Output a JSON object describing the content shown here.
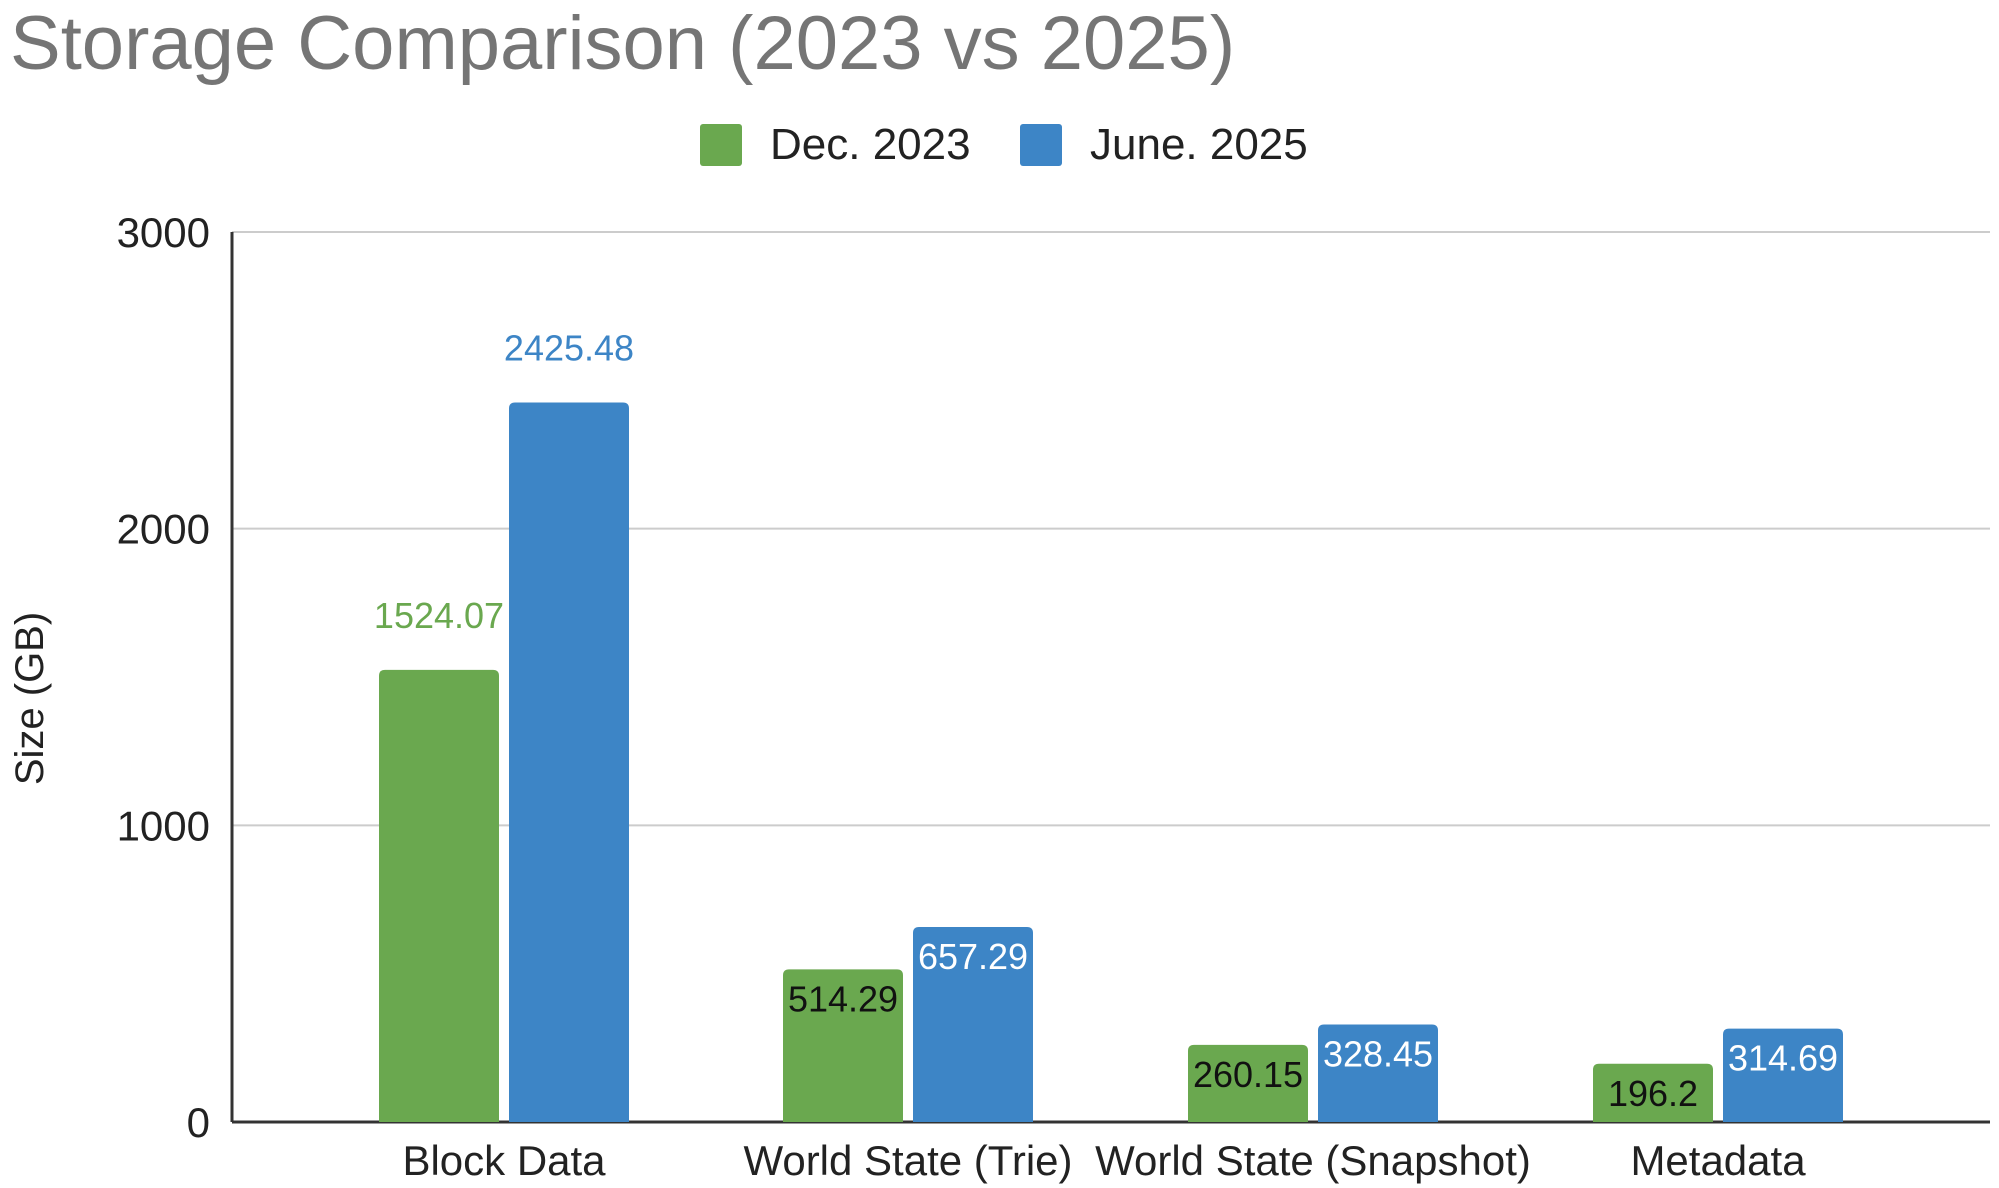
{
  "chart_data": {
    "type": "bar",
    "title": "Storage Comparison (2023 vs 2025)",
    "xlabel": "",
    "ylabel": "Size (GB)",
    "ylim": [
      0,
      3000
    ],
    "yticks": [
      "0",
      "1000",
      "2000",
      "3000"
    ],
    "categories": [
      "Block Data",
      "World State (Trie)",
      "World State (Snapshot)",
      "Metadata"
    ],
    "series": [
      {
        "name": "Dec. 2023",
        "color": "#6aa84f",
        "values": [
          1524.07,
          514.29,
          260.15,
          196.2
        ],
        "labels": [
          "1524.07",
          "514.29",
          "260.15",
          "196.2"
        ]
      },
      {
        "name": "June. 2025",
        "color": "#3d85c6",
        "values": [
          2425.48,
          657.29,
          328.45,
          314.69
        ],
        "labels": [
          "2425.48",
          "657.29",
          "328.45",
          "314.69"
        ]
      }
    ],
    "grid": true,
    "legend_position": "top"
  }
}
